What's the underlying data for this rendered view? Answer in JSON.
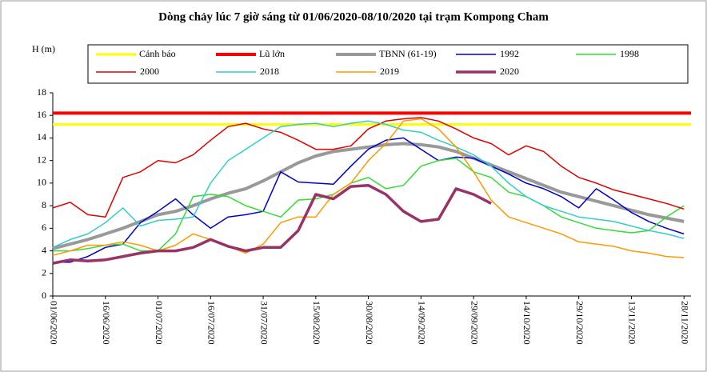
{
  "chart_data": {
    "type": "line",
    "title": "Dòng chảy lúc 7 giờ sáng từ 01/06/2020-08/10/2020 tại trạm Kompong Cham",
    "y_label": "H (m)",
    "x": [
      "01/06/2020",
      "06/06/2020",
      "11/06/2020",
      "16/06/2020",
      "21/06/2020",
      "26/06/2020",
      "01/07/2020",
      "06/07/2020",
      "11/07/2020",
      "16/07/2020",
      "21/07/2020",
      "26/07/2020",
      "31/07/2020",
      "05/08/2020",
      "10/08/2020",
      "15/08/2020",
      "20/08/2020",
      "25/08/2020",
      "30/08/2020",
      "04/09/2020",
      "09/09/2020",
      "14/09/2020",
      "19/09/2020",
      "24/09/2020",
      "29/09/2020",
      "04/10/2020",
      "09/10/2020",
      "14/10/2020",
      "19/10/2020",
      "24/10/2020",
      "29/10/2020",
      "03/11/2020",
      "08/11/2020",
      "13/11/2020",
      "18/11/2020",
      "23/11/2020",
      "28/11/2020"
    ],
    "xlim": [
      "01/06/2020",
      "30/11/2020"
    ],
    "xticks": [
      "01/06/2020",
      "16/06/2020",
      "01/07/2020",
      "16/07/2020",
      "31/07/2020",
      "15/08/2020",
      "30/08/2020",
      "14/09/2020",
      "29/09/2020",
      "14/10/2020",
      "29/10/2020",
      "13/11/2020",
      "28/11/2020"
    ],
    "ylim": [
      0,
      18
    ],
    "yticks": [
      0,
      2,
      4,
      6,
      8,
      10,
      12,
      14,
      16,
      18
    ],
    "series": [
      {
        "name": "Cảnh báo",
        "color": "#ffff00",
        "width": 3,
        "x": [
          "01/06/2020",
          "30/11/2020"
        ],
        "values": [
          15.2,
          15.2
        ]
      },
      {
        "name": "Lũ lớn",
        "color": "#ff0000",
        "width": 4,
        "x": [
          "01/06/2020",
          "30/11/2020"
        ],
        "values": [
          16.2,
          16.2
        ]
      },
      {
        "name": "TBNN (61-19)",
        "color": "#999999",
        "width": 4,
        "values": [
          4.2,
          4.6,
          5.0,
          5.5,
          6.0,
          6.6,
          7.2,
          7.5,
          8.0,
          8.6,
          9.1,
          9.5,
          10.2,
          11.0,
          11.8,
          12.4,
          12.8,
          13.0,
          13.2,
          13.4,
          13.5,
          13.4,
          13.2,
          12.8,
          12.2,
          11.6,
          11.0,
          10.4,
          9.8,
          9.2,
          8.8,
          8.4,
          8.0,
          7.6,
          7.2,
          6.9,
          6.6
        ]
      },
      {
        "name": "1992",
        "color": "#0000cc",
        "width": 1.5,
        "values": [
          3.0,
          3.0,
          3.5,
          4.3,
          4.6,
          6.5,
          7.5,
          8.6,
          7.2,
          6.0,
          7.0,
          7.2,
          7.5,
          11.0,
          10.1,
          10.0,
          9.9,
          11.5,
          13.0,
          13.8,
          14.0,
          13.0,
          12.0,
          12.3,
          12.2,
          11.5,
          10.8,
          10.0,
          9.5,
          8.8,
          7.8,
          9.5,
          8.5,
          7.4,
          6.6,
          6.0,
          5.5
        ]
      },
      {
        "name": "1998",
        "color": "#33dd33",
        "width": 1.5,
        "values": [
          4.0,
          4.0,
          4.2,
          4.5,
          4.6,
          4.0,
          4.0,
          5.5,
          8.8,
          9.0,
          8.8,
          8.0,
          7.5,
          7.0,
          8.5,
          8.6,
          9.0,
          10.0,
          10.5,
          9.5,
          9.8,
          11.5,
          12.0,
          12.2,
          11.0,
          10.5,
          9.2,
          8.8,
          8.0,
          7.0,
          6.5,
          6.0,
          5.8,
          5.6,
          5.8,
          7.0,
          8.0
        ]
      },
      {
        "name": "2000",
        "color": "#e00000",
        "width": 1.5,
        "values": [
          7.8,
          8.3,
          7.2,
          7.0,
          10.5,
          11.0,
          12.0,
          11.8,
          12.5,
          13.8,
          15.0,
          15.3,
          14.8,
          14.5,
          13.8,
          13.0,
          13.0,
          13.3,
          14.8,
          15.5,
          15.7,
          15.8,
          15.5,
          14.8,
          14.0,
          13.5,
          12.5,
          13.3,
          12.8,
          11.5,
          10.5,
          10.0,
          9.4,
          9.0,
          8.6,
          8.2,
          7.7
        ]
      },
      {
        "name": "2018",
        "color": "#33cccc",
        "width": 1.5,
        "values": [
          4.3,
          5.0,
          5.5,
          6.5,
          7.8,
          6.2,
          6.7,
          6.8,
          7.0,
          10.0,
          12.0,
          13.0,
          14.0,
          15.0,
          15.2,
          15.3,
          15.0,
          15.3,
          15.5,
          15.2,
          14.7,
          14.5,
          13.8,
          13.2,
          12.5,
          11.5,
          10.0,
          8.8,
          8.0,
          7.5,
          7.0,
          6.8,
          6.6,
          6.2,
          5.8,
          5.5,
          5.1
        ]
      },
      {
        "name": "2019",
        "color": "#ff9900",
        "width": 1.5,
        "values": [
          3.6,
          4.0,
          4.5,
          4.5,
          4.8,
          4.5,
          4.0,
          4.5,
          5.5,
          5.0,
          4.4,
          3.8,
          4.6,
          6.5,
          7.0,
          7.0,
          9.0,
          10.0,
          12.0,
          13.5,
          15.5,
          15.7,
          14.8,
          13.2,
          11.0,
          8.5,
          7.0,
          6.5,
          6.0,
          5.5,
          4.8,
          4.6,
          4.4,
          4.0,
          3.8,
          3.5,
          3.4
        ]
      },
      {
        "name": "2020",
        "color": "#993366",
        "width": 3.5,
        "values": [
          2.9,
          3.2,
          3.1,
          3.2,
          3.5,
          3.8,
          4.0,
          4.0,
          4.3,
          5.0,
          4.4,
          4.0,
          4.3,
          4.3,
          5.8,
          9.0,
          8.6,
          9.7,
          9.8,
          9.0,
          7.5,
          6.6,
          6.8,
          9.5,
          9.0,
          8.2,
          null,
          null,
          null,
          null,
          null,
          null,
          null,
          null,
          null,
          null,
          null
        ]
      }
    ]
  }
}
